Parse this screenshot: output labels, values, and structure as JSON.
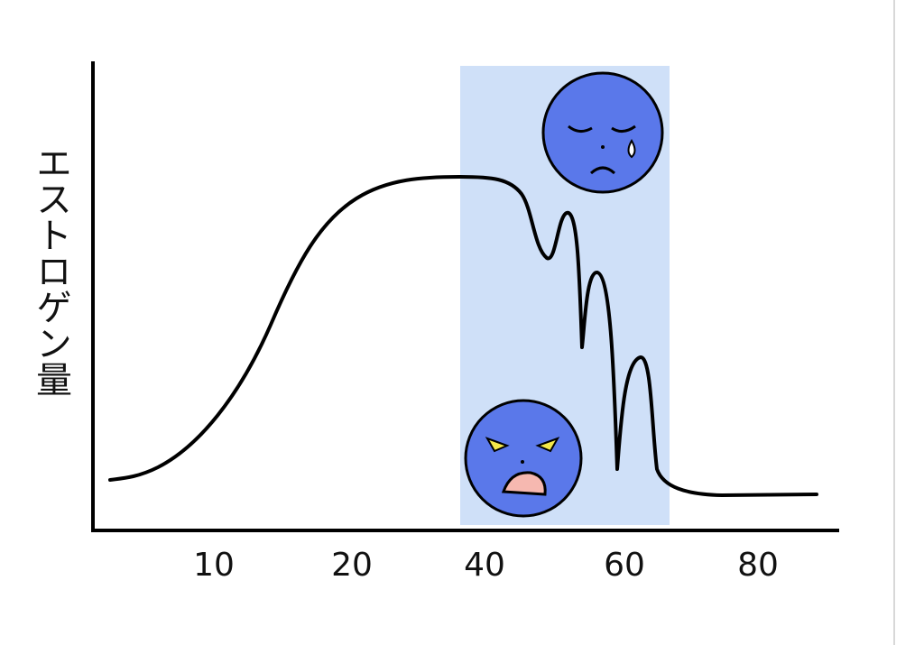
{
  "axis": {
    "y_label": "エストロゲン量",
    "x_labels": [
      "10",
      "20",
      "40",
      "60",
      "80"
    ]
  }
}
